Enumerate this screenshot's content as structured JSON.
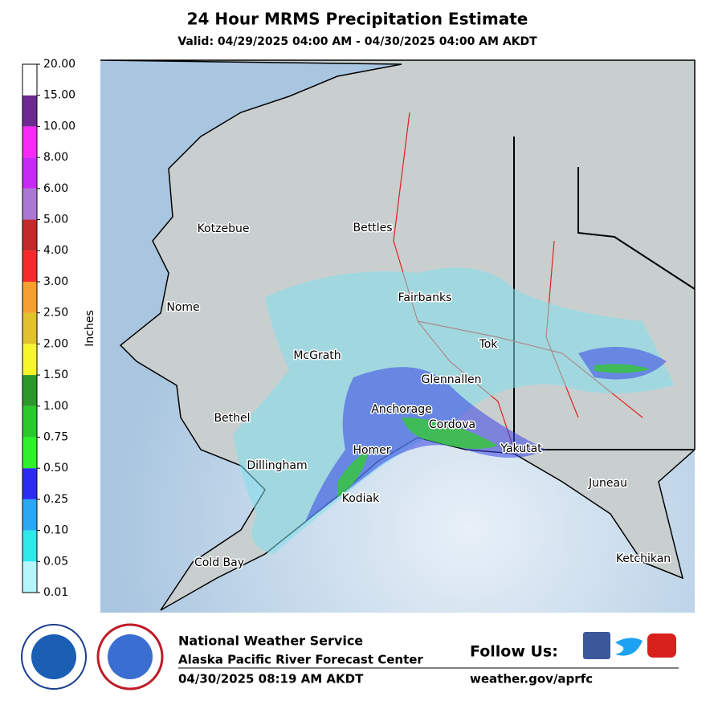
{
  "header": {
    "title": "24 Hour MRMS Precipitation Estimate",
    "subtitle": "Valid: 04/29/2025 04:00 AM - 04/30/2025 04:00 AM AKDT"
  },
  "legend": {
    "title": "Inches",
    "ticks": [
      "0.01",
      "0.05",
      "0.10",
      "0.25",
      "0.50",
      "0.75",
      "1.00",
      "1.50",
      "2.00",
      "2.50",
      "3.00",
      "4.00",
      "5.00",
      "6.00",
      "8.00",
      "10.00",
      "15.00",
      "20.00"
    ],
    "colors": [
      "#b4f6fa",
      "#2ee9ea",
      "#2aa8f2",
      "#2b2bf2",
      "#2cf22c",
      "#2ac92a",
      "#2a982a",
      "#f6f62a",
      "#e2c22c",
      "#f6a030",
      "#f62a2a",
      "#c42a2a",
      "#aa78d4",
      "#c62af4",
      "#f62af4",
      "#6c2a90",
      "#ffffff"
    ]
  },
  "map": {
    "cities": [
      "Kotzebue",
      "Bettles",
      "Nome",
      "Fairbanks",
      "Tok",
      "McGrath",
      "Glennallen",
      "Bethel",
      "Anchorage",
      "Cordova",
      "Homer",
      "Yakutat",
      "Dillingham",
      "Juneau",
      "Kodiak",
      "Cold Bay",
      "Ketchikan"
    ]
  },
  "footer": {
    "org": "National Weather Service",
    "office": "Alaska Pacific River Forecast Center",
    "timestamp": "04/30/2025 08:19 AM AKDT",
    "follow": "Follow Us:",
    "url": "weather.gov/aprfc"
  }
}
